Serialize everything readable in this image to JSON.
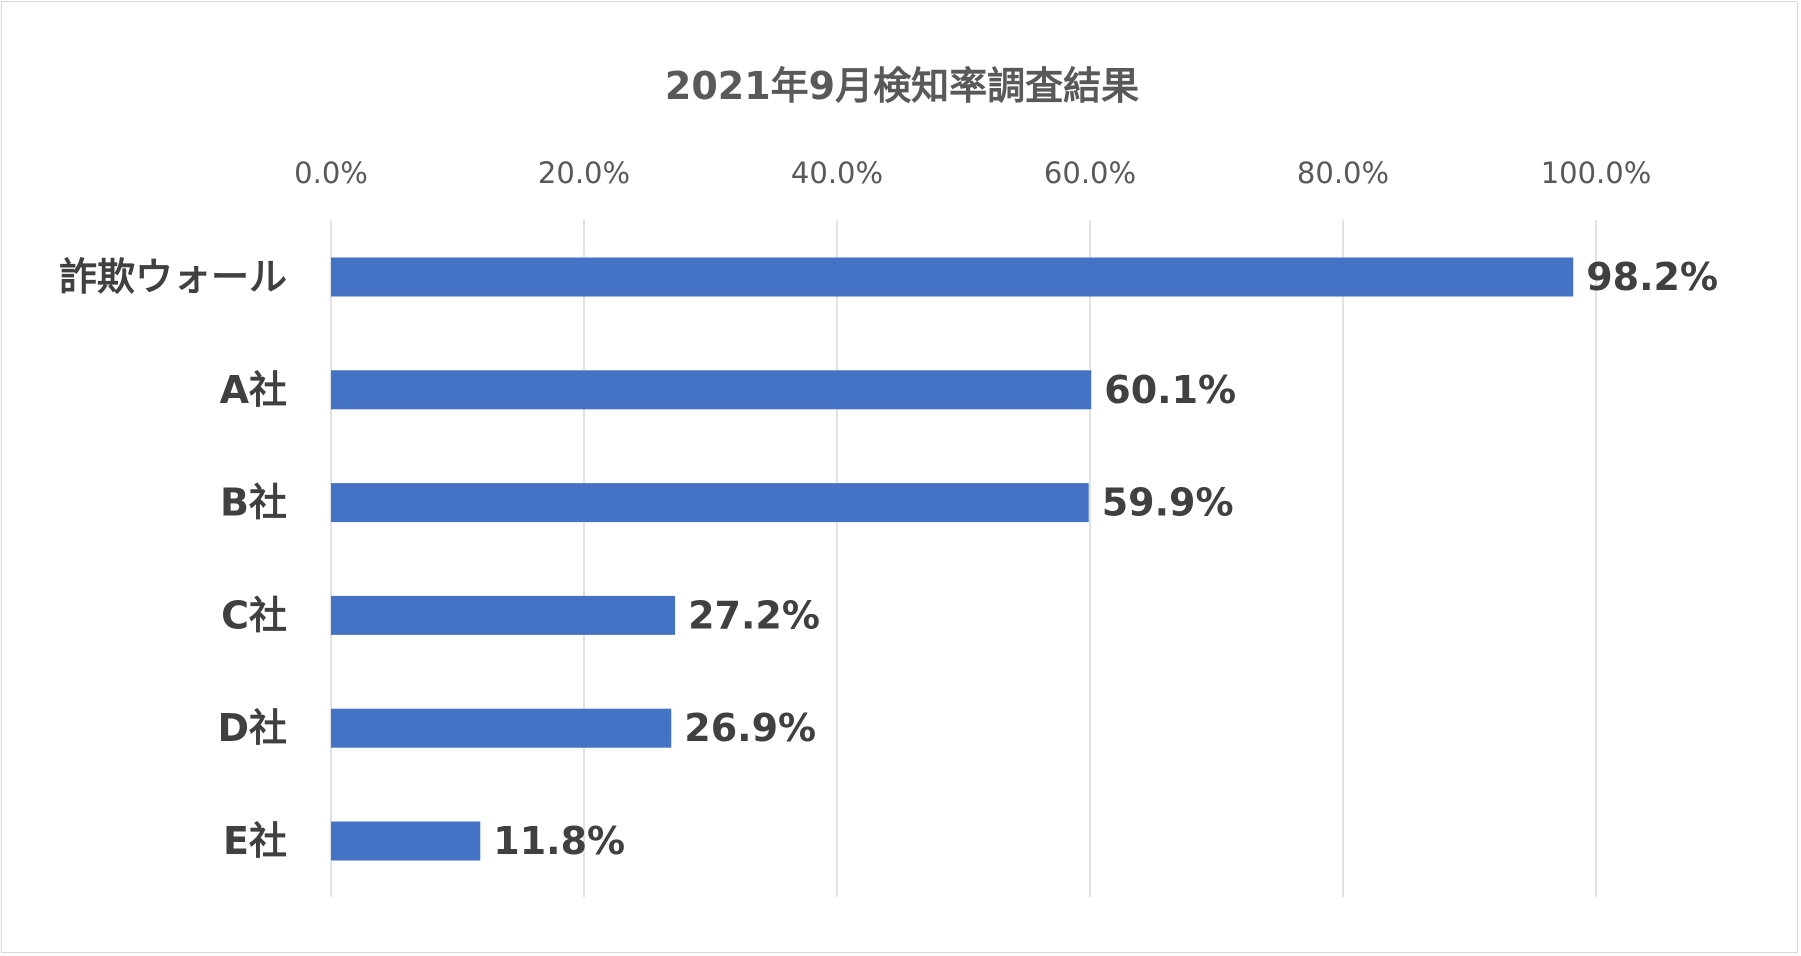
{
  "chart_data": {
    "type": "bar",
    "orientation": "horizontal",
    "title": "2021年9月検知率調査結果",
    "categories": [
      "詐欺ウォール",
      "A社",
      "B社",
      "C社",
      "D社",
      "E社"
    ],
    "values": [
      98.2,
      60.1,
      59.9,
      27.2,
      26.9,
      11.8
    ],
    "data_labels": [
      "98.2%",
      "60.1%",
      "59.9%",
      "27.2%",
      "26.9%",
      "11.8%"
    ],
    "x_ticks": [
      "0.0%",
      "20.0%",
      "40.0%",
      "60.0%",
      "80.0%",
      "100.0%"
    ],
    "x_tick_values": [
      0,
      20,
      40,
      60,
      80,
      100
    ],
    "xlim": [
      0,
      100
    ],
    "xaxis_position": "top",
    "grid": true,
    "legend": false,
    "xlabel": "",
    "ylabel": ""
  },
  "colors": {
    "bar": "#4472c4",
    "grid": "#d9d9d9",
    "title": "#595959",
    "tick_text": "#595959",
    "label_text": "#404040"
  }
}
